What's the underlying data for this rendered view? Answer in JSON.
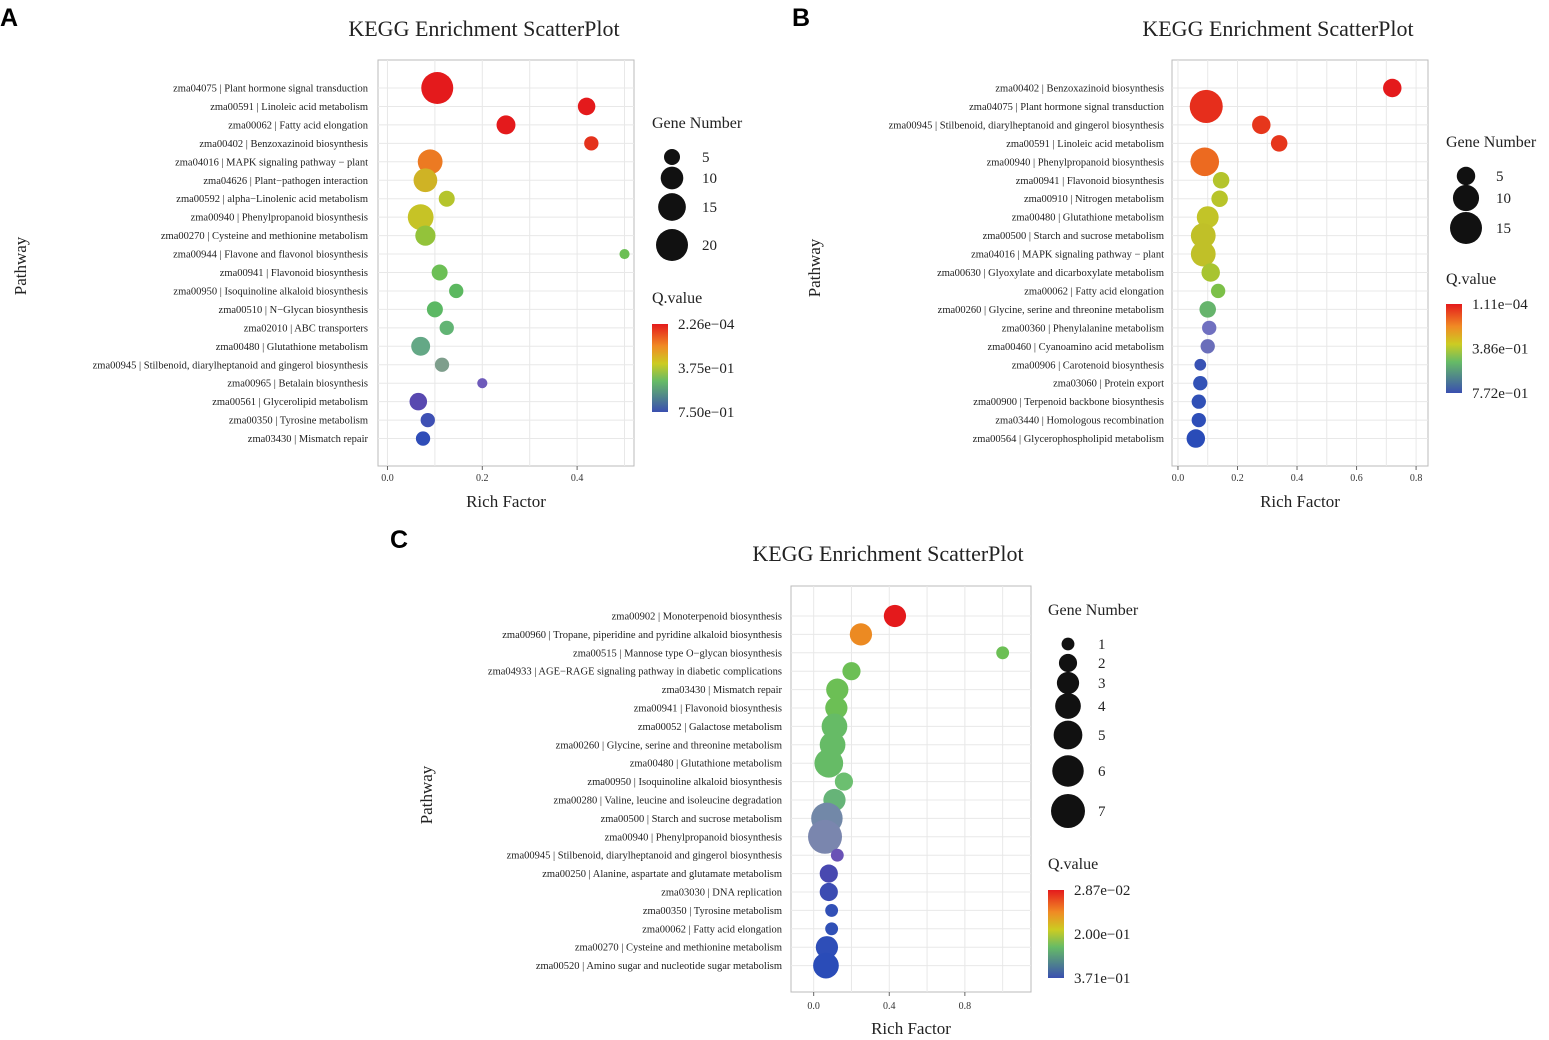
{
  "figure": {
    "colors": {
      "high": "#e41a1c",
      "mid_high": "#f08a24",
      "mid": "#cccc22",
      "mid_low": "#66bb66",
      "low": "#3a4fb0",
      "frame": "#bbbbbb",
      "grid": "#e8e8e8"
    }
  },
  "chart_data": [
    {
      "panel": "A",
      "type": "scatter",
      "title": "KEGG Enrichment ScatterPlot",
      "xlabel": "Rich Factor",
      "ylabel": "Pathway",
      "xlim": [
        -0.02,
        0.52
      ],
      "xticks": [
        0.0,
        0.2,
        0.4
      ],
      "xtick_labels": [
        "0.0",
        "0.2",
        "0.4"
      ],
      "size_legend": {
        "title": "Gene Number",
        "values": [
          5,
          10,
          15,
          20
        ],
        "labels": [
          "5",
          "10",
          "15",
          "20"
        ],
        "max_value": 20
      },
      "color_legend": {
        "title": "Q.value",
        "high_label": "2.26e−04",
        "mid_label": "3.75e−01",
        "low_label": "7.50e−01"
      },
      "points": [
        {
          "label": "zma04075 | Plant hormone signal transduction",
          "x": 0.105,
          "genes": 20,
          "color": "#e41a1c"
        },
        {
          "label": "zma00591 | Linoleic acid metabolism",
          "x": 0.42,
          "genes": 6,
          "color": "#e41a1c"
        },
        {
          "label": "zma00062 | Fatty acid elongation",
          "x": 0.25,
          "genes": 7,
          "color": "#e41a1c"
        },
        {
          "label": "zma00402 | Benzoxazinoid biosynthesis",
          "x": 0.43,
          "genes": 4,
          "color": "#e4321c"
        },
        {
          "label": "zma04016 | MAPK signaling pathway − plant",
          "x": 0.09,
          "genes": 12,
          "color": "#ec7a22"
        },
        {
          "label": "zma04626 | Plant−pathogen interaction",
          "x": 0.08,
          "genes": 11,
          "color": "#cfb325"
        },
        {
          "label": "zma00592 | alpha−Linolenic acid metabolism",
          "x": 0.125,
          "genes": 5,
          "color": "#b5c42c"
        },
        {
          "label": "zma00940 | Phenylpropanoid biosynthesis",
          "x": 0.07,
          "genes": 13,
          "color": "#c6c326"
        },
        {
          "label": "zma00270 | Cysteine and methionine metabolism",
          "x": 0.08,
          "genes": 8,
          "color": "#93c33a"
        },
        {
          "label": "zma00944 | Flavone and flavonol biosynthesis",
          "x": 0.5,
          "genes": 2,
          "color": "#6cbf55"
        },
        {
          "label": "zma00941 | Flavonoid biosynthesis",
          "x": 0.11,
          "genes": 5,
          "color": "#6cbf55"
        },
        {
          "label": "zma00950 | Isoquinoline alkaloid biosynthesis",
          "x": 0.145,
          "genes": 4,
          "color": "#5cb860"
        },
        {
          "label": "zma00510 | N−Glycan biosynthesis",
          "x": 0.1,
          "genes": 5,
          "color": "#5cb864"
        },
        {
          "label": "zma02010 | ABC transporters",
          "x": 0.125,
          "genes": 4,
          "color": "#62b474"
        },
        {
          "label": "zma00480 | Glutathione metabolism",
          "x": 0.07,
          "genes": 7,
          "color": "#64a886"
        },
        {
          "label": "zma00945 | Stilbenoid, diarylheptanoid and gingerol biosynthesis",
          "x": 0.115,
          "genes": 4,
          "color": "#7e9e8c"
        },
        {
          "label": "zma00965 | Betalain biosynthesis",
          "x": 0.2,
          "genes": 2,
          "color": "#6e5aba"
        },
        {
          "label": "zma00561 | Glycerolipid metabolism",
          "x": 0.065,
          "genes": 6,
          "color": "#5848b0"
        },
        {
          "label": "zma00350 | Tyrosine metabolism",
          "x": 0.085,
          "genes": 4,
          "color": "#3e50b4"
        },
        {
          "label": "zma03430 | Mismatch repair",
          "x": 0.075,
          "genes": 4,
          "color": "#2f4db8"
        }
      ]
    },
    {
      "panel": "B",
      "type": "scatter",
      "title": "KEGG Enrichment ScatterPlot",
      "xlabel": "Rich Factor",
      "ylabel": "Pathway",
      "xlim": [
        -0.02,
        0.84
      ],
      "xticks": [
        0.0,
        0.2,
        0.4,
        0.6,
        0.8
      ],
      "xtick_labels": [
        "0.0",
        "0.2",
        "0.4",
        "0.6",
        "0.8"
      ],
      "size_legend": {
        "title": "Gene Number",
        "values": [
          5,
          10,
          15
        ],
        "labels": [
          "5",
          "10",
          "15"
        ],
        "max_value": 15
      },
      "color_legend": {
        "title": "Q.value",
        "high_label": "1.11e−04",
        "mid_label": "3.86e−01",
        "low_label": "7.72e−01"
      },
      "points": [
        {
          "label": "zma00402 | Benzoxazinoid biosynthesis",
          "x": 0.72,
          "genes": 5,
          "color": "#e41a1c"
        },
        {
          "label": "zma04075 | Plant hormone signal transduction",
          "x": 0.095,
          "genes": 16,
          "color": "#e62e1c"
        },
        {
          "label": "zma00945 | Stilbenoid, diarylheptanoid and gingerol biosynthesis",
          "x": 0.28,
          "genes": 5,
          "color": "#e6361c"
        },
        {
          "label": "zma00591 | Linoleic acid metabolism",
          "x": 0.34,
          "genes": 4,
          "color": "#e6361c"
        },
        {
          "label": "zma00940 | Phenylpropanoid biosynthesis",
          "x": 0.09,
          "genes": 12,
          "color": "#ec6a20"
        },
        {
          "label": "zma00941 | Flavonoid biosynthesis",
          "x": 0.145,
          "genes": 4,
          "color": "#b4c42c"
        },
        {
          "label": "zma00910 | Nitrogen metabolism",
          "x": 0.14,
          "genes": 4,
          "color": "#b8c42a"
        },
        {
          "label": "zma00480 | Glutathione metabolism",
          "x": 0.1,
          "genes": 7,
          "color": "#c2c428"
        },
        {
          "label": "zma00500 | Starch and sucrose metabolism",
          "x": 0.085,
          "genes": 9,
          "color": "#c0c028"
        },
        {
          "label": "zma04016 | MAPK signaling pathway − plant",
          "x": 0.085,
          "genes": 9,
          "color": "#c0c028"
        },
        {
          "label": "zma00630 | Glyoxylate and dicarboxylate metabolism",
          "x": 0.11,
          "genes": 5,
          "color": "#a8c430"
        },
        {
          "label": "zma00062 | Fatty acid elongation",
          "x": 0.135,
          "genes": 3,
          "color": "#7cc048"
        },
        {
          "label": "zma00260 | Glycine, serine and threonine metabolism",
          "x": 0.1,
          "genes": 4,
          "color": "#66b46c"
        },
        {
          "label": "zma00360 | Phenylalanine metabolism",
          "x": 0.105,
          "genes": 3,
          "color": "#7070c0"
        },
        {
          "label": "zma00460 | Cyanoamino acid metabolism",
          "x": 0.1,
          "genes": 3,
          "color": "#6a6eba"
        },
        {
          "label": "zma00906 | Carotenoid biosynthesis",
          "x": 0.075,
          "genes": 2,
          "color": "#3852b4"
        },
        {
          "label": "zma03060 | Protein export",
          "x": 0.075,
          "genes": 3,
          "color": "#3252b6"
        },
        {
          "label": "zma00900 | Terpenoid backbone biosynthesis",
          "x": 0.07,
          "genes": 3,
          "color": "#3050b6"
        },
        {
          "label": "zma03440 | Homologous recombination",
          "x": 0.07,
          "genes": 3,
          "color": "#2e4eb8"
        },
        {
          "label": "zma00564 | Glycerophospholipid metabolism",
          "x": 0.06,
          "genes": 5,
          "color": "#2a4cb8"
        }
      ]
    },
    {
      "panel": "C",
      "type": "scatter",
      "title": "KEGG Enrichment ScatterPlot",
      "xlabel": "Rich Factor",
      "ylabel": "Pathway",
      "xlim": [
        -0.12,
        1.15
      ],
      "xticks": [
        0.0,
        0.4,
        0.8
      ],
      "xtick_labels": [
        "0.0",
        "0.4",
        "0.8"
      ],
      "size_legend": {
        "title": "Gene Number",
        "values": [
          1,
          2,
          3,
          4,
          5,
          6,
          7
        ],
        "labels": [
          "1",
          "2",
          "3",
          "4",
          "5",
          "6",
          "7"
        ],
        "max_value": 7
      },
      "color_legend": {
        "title": "Q.value",
        "high_label": "2.87e−02",
        "mid_label": "2.00e−01",
        "low_label": "3.71e−01"
      },
      "points": [
        {
          "label": "zma00902 | Monoterpenoid biosynthesis",
          "x": 0.43,
          "genes": 3,
          "color": "#e41a1c"
        },
        {
          "label": "zma00960 | Tropane, piperidine and pyridine alkaloid biosynthesis",
          "x": 0.25,
          "genes": 3,
          "color": "#ec8a22"
        },
        {
          "label": "zma00515 | Mannose type O−glycan biosynthesis",
          "x": 1.0,
          "genes": 1,
          "color": "#6cbf55"
        },
        {
          "label": "zma04933 | AGE−RAGE signaling pathway in diabetic complications",
          "x": 0.2,
          "genes": 2,
          "color": "#6cbf55"
        },
        {
          "label": "zma03430 | Mismatch repair",
          "x": 0.125,
          "genes": 3,
          "color": "#6cbf55"
        },
        {
          "label": "zma00941 | Flavonoid biosynthesis",
          "x": 0.12,
          "genes": 3,
          "color": "#6cbf55"
        },
        {
          "label": "zma00052 | Galactose metabolism",
          "x": 0.11,
          "genes": 4,
          "color": "#66bb66"
        },
        {
          "label": "zma00260 | Glycine, serine and threonine metabolism",
          "x": 0.1,
          "genes": 4,
          "color": "#66bb66"
        },
        {
          "label": "zma00480 | Glutathione metabolism",
          "x": 0.08,
          "genes": 5,
          "color": "#66bb66"
        },
        {
          "label": "zma00950 | Isoquinoline alkaloid biosynthesis",
          "x": 0.16,
          "genes": 2,
          "color": "#6cbf70"
        },
        {
          "label": "zma00280 | Valine, leucine and isoleucine degradation",
          "x": 0.11,
          "genes": 3,
          "color": "#66b478"
        },
        {
          "label": "zma00500 | Starch and sucrose metabolism",
          "x": 0.07,
          "genes": 6,
          "color": "#7288a8"
        },
        {
          "label": "zma00940 | Phenylpropanoid biosynthesis",
          "x": 0.06,
          "genes": 7,
          "color": "#7a86ae"
        },
        {
          "label": "zma00945 | Stilbenoid, diarylheptanoid and gingerol biosynthesis",
          "x": 0.125,
          "genes": 1,
          "color": "#6a52b6"
        },
        {
          "label": "zma00250 | Alanine, aspartate and glutamate metabolism",
          "x": 0.08,
          "genes": 2,
          "color": "#4848b0"
        },
        {
          "label": "zma03030 | DNA replication",
          "x": 0.08,
          "genes": 2,
          "color": "#3c4cb2"
        },
        {
          "label": "zma00350 | Tyrosine metabolism",
          "x": 0.095,
          "genes": 1,
          "color": "#3250b6"
        },
        {
          "label": "zma00062 | Fatty acid elongation",
          "x": 0.095,
          "genes": 1,
          "color": "#3050b6"
        },
        {
          "label": "zma00270 | Cysteine and methionine metabolism",
          "x": 0.07,
          "genes": 3,
          "color": "#2e4eb8"
        },
        {
          "label": "zma00520 | Amino sugar and nucleotide sugar metabolism",
          "x": 0.065,
          "genes": 4,
          "color": "#2a4cb8"
        }
      ]
    }
  ]
}
